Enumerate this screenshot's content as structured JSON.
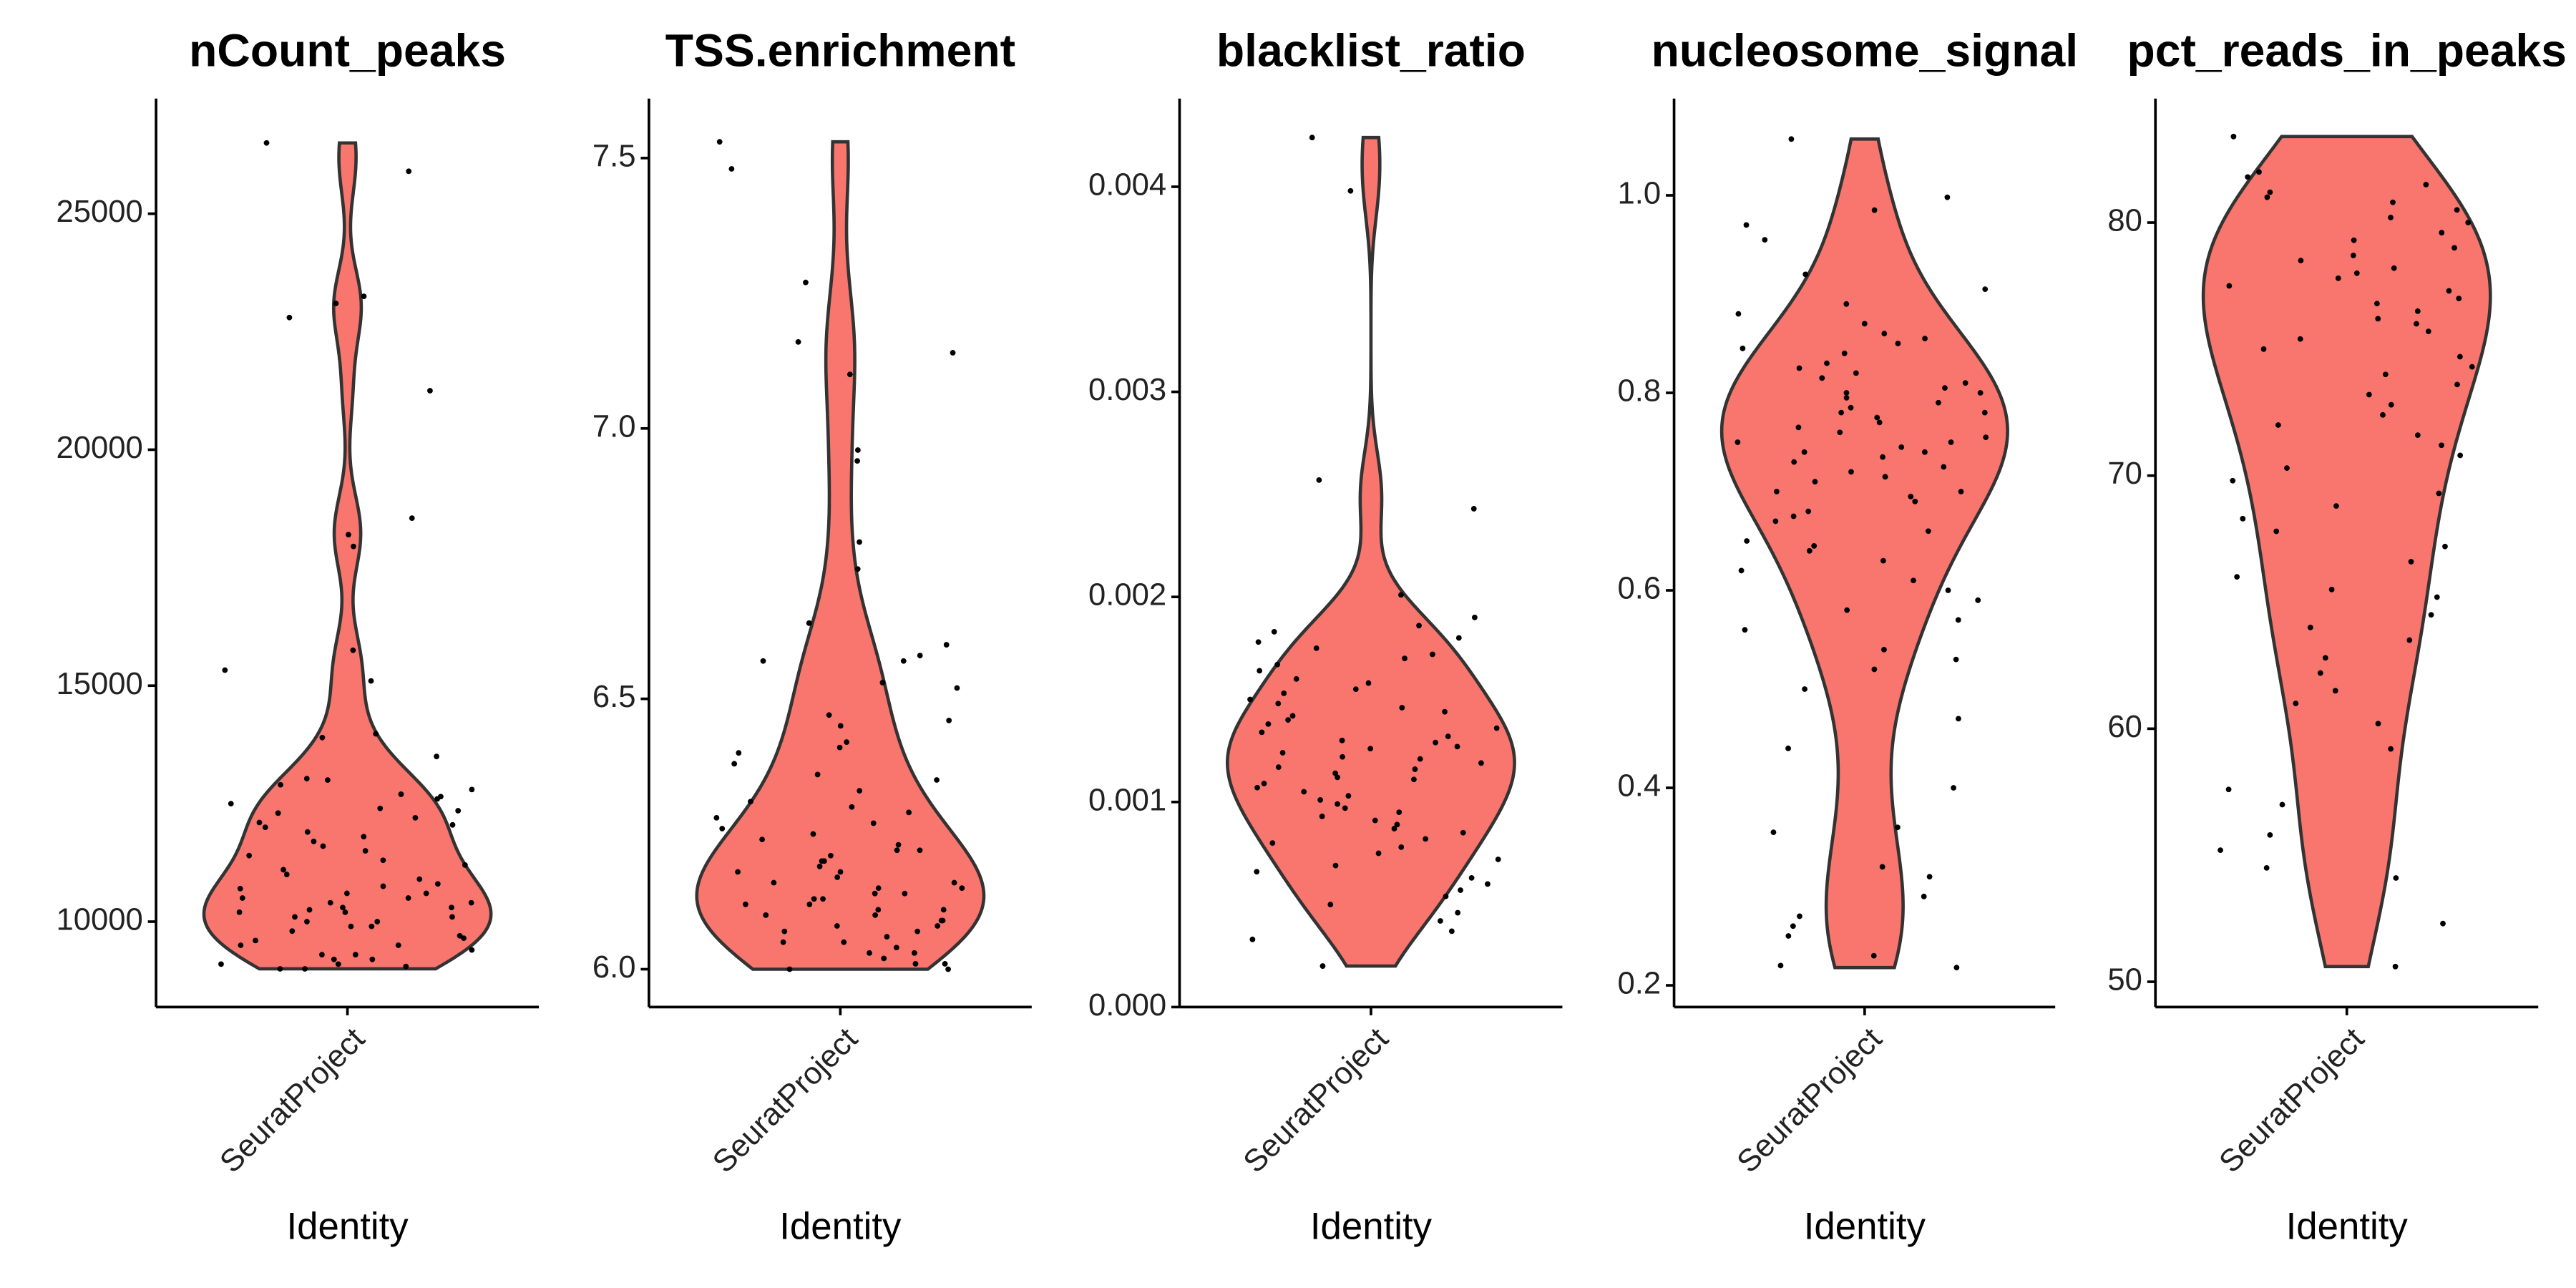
{
  "chart_data": [
    {
      "type": "violin",
      "title": "nCount_peaks",
      "x_label": "Identity",
      "categories": [
        "SeuratProject"
      ],
      "color": "#f8766d",
      "ylim": [
        8190,
        27440
      ],
      "yticks": [
        10000,
        15000,
        20000,
        25000
      ],
      "values": [
        26500,
        25900,
        23250,
        23100,
        22800,
        21250,
        18550,
        18200,
        17950,
        15750,
        15330,
        15100,
        13980,
        13900,
        13500,
        13030,
        13000,
        12900,
        12800,
        12700,
        12650,
        12600,
        12500,
        12400,
        12350,
        12300,
        12200,
        12100,
        12050,
        12000,
        11900,
        11800,
        11700,
        11600,
        11500,
        11400,
        11300,
        11200,
        11100,
        11000,
        10900,
        10800,
        10750,
        10700,
        10600,
        10600,
        10500,
        10500,
        10400,
        10400,
        10300,
        10300,
        10250,
        10200,
        10200,
        10100,
        10100,
        10000,
        10000,
        9900,
        9900,
        9800,
        9700,
        9650,
        9600,
        9500,
        9500,
        9400,
        9300,
        9300,
        9200,
        9200,
        9100,
        9100,
        9050,
        9000,
        9000
      ]
    },
    {
      "type": "violin",
      "title": "TSS.enrichment",
      "x_label": "Identity",
      "categories": [
        "SeuratProject"
      ],
      "color": "#f8766d",
      "ylim": [
        5.93,
        7.61
      ],
      "yticks": [
        {
          "value": 6,
          "label": "6.0"
        },
        6.5,
        {
          "value": 7,
          "label": "7.0"
        },
        7.5
      ],
      "values": [
        7.53,
        7.48,
        7.27,
        7.16,
        7.14,
        7.1,
        6.96,
        6.94,
        6.79,
        6.74,
        6.64,
        6.6,
        6.58,
        6.57,
        6.57,
        6.53,
        6.52,
        6.47,
        6.46,
        6.45,
        6.42,
        6.41,
        6.4,
        6.38,
        6.36,
        6.35,
        6.33,
        6.31,
        6.3,
        6.29,
        6.28,
        6.27,
        6.26,
        6.25,
        6.24,
        6.23,
        6.22,
        6.22,
        6.21,
        6.2,
        6.2,
        6.19,
        6.18,
        6.18,
        6.17,
        6.16,
        6.16,
        6.15,
        6.15,
        6.14,
        6.14,
        6.13,
        6.13,
        6.12,
        6.12,
        6.11,
        6.11,
        6.1,
        6.1,
        6.09,
        6.09,
        6.08,
        6.08,
        6.07,
        6.07,
        6.06,
        6.05,
        6.05,
        6.04,
        6.03,
        6.03,
        6.02,
        6.01,
        6.01,
        6,
        6
      ]
    },
    {
      "type": "violin",
      "title": "blacklist_ratio",
      "x_label": "Identity",
      "categories": [
        "SeuratProject"
      ],
      "color": "#f8766d",
      "ylim": [
        0,
        0.00443
      ],
      "yticks": [
        {
          "value": 0,
          "label": "0.000"
        },
        {
          "value": 0.001,
          "label": "0.001"
        },
        {
          "value": 0.002,
          "label": "0.002"
        },
        {
          "value": 0.003,
          "label": "0.003"
        },
        {
          "value": 0.004,
          "label": "0.004"
        }
      ],
      "values": [
        0.00424,
        0.00398,
        0.00257,
        0.00243,
        0.00201,
        0.0019,
        0.00186,
        0.00183,
        0.0018,
        0.00178,
        0.00175,
        0.00172,
        0.0017,
        0.00167,
        0.00164,
        0.0016,
        0.00158,
        0.00155,
        0.00153,
        0.0015,
        0.00148,
        0.00146,
        0.00144,
        0.00142,
        0.0014,
        0.00138,
        0.00136,
        0.00134,
        0.00132,
        0.0013,
        0.00129,
        0.00127,
        0.00126,
        0.00124,
        0.00122,
        0.00121,
        0.00119,
        0.00117,
        0.00116,
        0.00114,
        0.00112,
        0.00111,
        0.00109,
        0.00107,
        0.00105,
        0.00103,
        0.00101,
        0.00099,
        0.00097,
        0.00095,
        0.00093,
        0.00091,
        0.00089,
        0.00087,
        0.00085,
        0.00082,
        0.0008,
        0.00078,
        0.00075,
        0.00072,
        0.00069,
        0.00066,
        0.00063,
        0.0006,
        0.00057,
        0.00054,
        0.0005,
        0.00046,
        0.00042,
        0.00037,
        0.00033,
        0.0002
      ]
    },
    {
      "type": "violin",
      "title": "nucleosome_signal",
      "x_label": "Identity",
      "categories": [
        "SeuratProject"
      ],
      "color": "#f8766d",
      "ylim": [
        0.178,
        1.098
      ],
      "yticks": [
        0.2,
        0.4,
        0.6,
        0.8,
        {
          "value": 1,
          "label": "1.0"
        }
      ],
      "values": [
        1.057,
        0.998,
        0.985,
        0.97,
        0.955,
        0.92,
        0.905,
        0.89,
        0.88,
        0.87,
        0.86,
        0.855,
        0.85,
        0.845,
        0.84,
        0.83,
        0.825,
        0.82,
        0.815,
        0.81,
        0.805,
        0.8,
        0.8,
        0.795,
        0.79,
        0.785,
        0.78,
        0.78,
        0.775,
        0.77,
        0.765,
        0.76,
        0.755,
        0.75,
        0.75,
        0.745,
        0.74,
        0.74,
        0.735,
        0.73,
        0.725,
        0.72,
        0.715,
        0.71,
        0.7,
        0.7,
        0.695,
        0.69,
        0.68,
        0.675,
        0.67,
        0.66,
        0.65,
        0.645,
        0.64,
        0.63,
        0.62,
        0.61,
        0.6,
        0.59,
        0.58,
        0.57,
        0.56,
        0.54,
        0.53,
        0.52,
        0.5,
        0.47,
        0.44,
        0.4,
        0.36,
        0.355,
        0.32,
        0.31,
        0.29,
        0.27,
        0.26,
        0.25,
        0.23,
        0.22,
        0.218
      ]
    },
    {
      "type": "violin",
      "title": "pct_reads_in_peaks",
      "x_label": "Identity",
      "categories": [
        "SeuratProject"
      ],
      "color": "#f8766d",
      "ylim": [
        49.0,
        84.9
      ],
      "yticks": [
        50,
        60,
        70,
        80
      ],
      "values": [
        83.4,
        82,
        81.8,
        81.5,
        81.2,
        81,
        80.8,
        80.5,
        80.2,
        80,
        79.6,
        79.3,
        79,
        78.7,
        78.5,
        78.2,
        78,
        77.8,
        77.5,
        77.3,
        77,
        76.8,
        76.5,
        76.2,
        76,
        75.7,
        75.4,
        75,
        74.7,
        74.3,
        74,
        73.6,
        73.2,
        72.8,
        72.4,
        72,
        71.6,
        71.2,
        70.8,
        70.3,
        69.8,
        69.3,
        68.8,
        68.3,
        67.8,
        67.2,
        66.6,
        66,
        65.5,
        65.2,
        64.5,
        64,
        63.5,
        62.8,
        62.2,
        61.5,
        61,
        60.2,
        59.2,
        57.6,
        57,
        55.8,
        55.2,
        54.5,
        54.1,
        52.3,
        50.6
      ]
    }
  ]
}
